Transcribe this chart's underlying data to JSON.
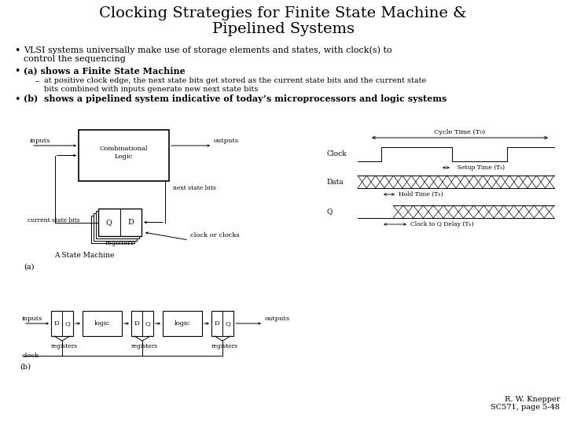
{
  "title_line1": "Clocking Strategies for Finite State Machine &",
  "title_line2": "Pipelined Systems",
  "bg_color": "#ffffff",
  "text_color": "#000000",
  "footer": "R. W. Knepper\nSC571, page 5-48"
}
